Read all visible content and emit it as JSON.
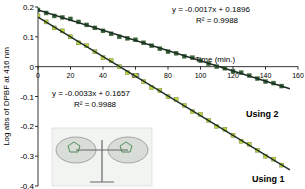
{
  "chart_data": {
    "type": "scatter",
    "y_label": "Log abs of DPBF at 416 nm",
    "x_label": "Time (min.)",
    "xlim": [
      0,
      160
    ],
    "xticks": [
      0,
      20,
      40,
      60,
      80,
      100,
      120,
      140,
      160
    ],
    "ylim": [
      -0.4,
      0.2
    ],
    "yticks": [
      0.2,
      0.1,
      0,
      -0.1,
      -0.2,
      -0.3,
      -0.4
    ],
    "grid": false,
    "series": [
      {
        "name": "Using 1",
        "color": "#c3d93a",
        "marker": "square",
        "x": [
          0,
          5,
          10,
          15,
          20,
          25,
          30,
          35,
          40,
          45,
          50,
          55,
          60,
          65,
          70,
          75,
          80,
          85,
          90,
          95,
          100,
          105,
          110,
          115,
          120,
          125,
          130,
          135,
          140,
          145,
          150
        ],
        "values": [
          0.17,
          0.15,
          0.13,
          0.12,
          0.1,
          0.08,
          0.07,
          0.05,
          0.03,
          0.02,
          0.0,
          -0.02,
          -0.03,
          -0.05,
          -0.07,
          -0.08,
          -0.1,
          -0.11,
          -0.13,
          -0.15,
          -0.16,
          -0.18,
          -0.2,
          -0.21,
          -0.23,
          -0.25,
          -0.26,
          -0.28,
          -0.3,
          -0.31,
          -0.33
        ]
      },
      {
        "name": "Using 2",
        "color": "#2f5f3c",
        "marker": "square",
        "x": [
          0,
          5,
          10,
          15,
          20,
          25,
          30,
          35,
          40,
          45,
          50,
          55,
          60,
          65,
          70,
          75,
          80,
          85,
          90,
          95,
          100,
          105,
          110,
          115,
          120,
          125,
          130,
          135,
          140,
          145,
          150
        ],
        "values": [
          0.19,
          0.18,
          0.17,
          0.165,
          0.16,
          0.15,
          0.14,
          0.13,
          0.12,
          0.11,
          0.1,
          0.095,
          0.09,
          0.08,
          0.07,
          0.06,
          0.05,
          0.045,
          0.035,
          0.03,
          0.02,
          0.01,
          0.0,
          -0.005,
          -0.015,
          -0.02,
          -0.03,
          -0.04,
          -0.05,
          -0.055,
          -0.065
        ]
      },
      {
        "type": "line",
        "color": "#1c2e24",
        "line_style": "solid",
        "x": [
          0,
          155
        ],
        "values": [
          0.166,
          -0.346
        ]
      },
      {
        "type": "line",
        "color": "#1c2e24",
        "line_style": "solid",
        "x": [
          0,
          155
        ],
        "values": [
          0.19,
          -0.074
        ]
      }
    ],
    "annotations": [
      "y = -0.0017x + 0.1896",
      "R² = 0.9988",
      "y = -0.0033x + 0.1657",
      "R² = 0.9988",
      "Using 2",
      "Using 1"
    ]
  }
}
